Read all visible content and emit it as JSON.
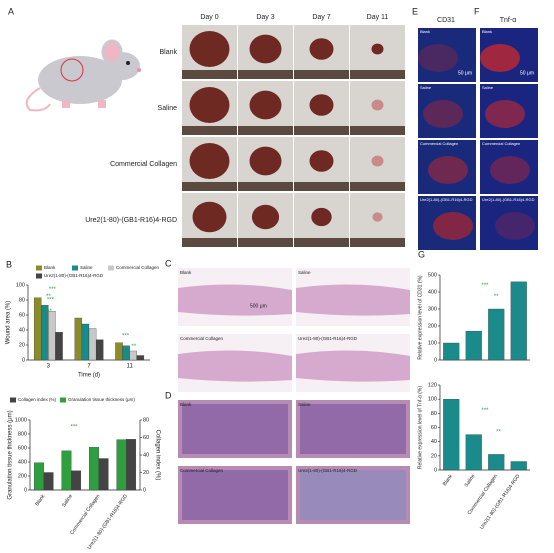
{
  "panel_a": {
    "label": "A",
    "days": [
      "Day 0",
      "Day 3",
      "Day 7",
      "Day 11"
    ],
    "rows": [
      "Blank",
      "Saline",
      "Commercial Collagen",
      "Ure2(1-80)-(GB1-R16)4-RGD"
    ]
  },
  "panel_e": {
    "label": "E",
    "title": "CD31",
    "scale": "50 μm",
    "rows": [
      "Blank",
      "Saline",
      "Commercial Collagen",
      "Ure2(1-80)-(GB1-R16)4-RGD"
    ]
  },
  "panel_f": {
    "label": "F",
    "title": "Tnf-α",
    "scale": "50 μm",
    "rows": [
      "Blank",
      "Saline",
      "Commercial Collagen",
      "Ure2(1-80)-(GB1-R16)4-RGD"
    ]
  },
  "panel_c": {
    "label": "C",
    "scale": "500 μm",
    "images": [
      "Blank",
      "Saline",
      "Commercial Collagen",
      "Ure2(1-80)-(GB1-R16)4-RGD"
    ]
  },
  "panel_d": {
    "label": "D",
    "images": [
      "Blank",
      "Saline",
      "Commercial Collagen",
      "Ure2(1-80)-(GB1-R16)4-RGD"
    ]
  },
  "chart_data": [
    {
      "type": "bar",
      "panel_label": "B",
      "y_label": "Wound area (%)",
      "x_label": "Time (d)",
      "categories": [
        "3",
        "7",
        "11"
      ],
      "ylim": [
        0,
        100
      ],
      "yticks": [
        0,
        20,
        40,
        60,
        80,
        100
      ],
      "series": [
        {
          "name": "Blank",
          "color": "#8b8b2a",
          "values": [
            83,
            56,
            23
          ]
        },
        {
          "name": "Saline",
          "color": "#1a8a8a",
          "values": [
            73,
            48,
            19
          ]
        },
        {
          "name": "Commercial Collagen",
          "color": "#c8c8c8",
          "values": [
            65,
            42,
            12
          ]
        },
        {
          "name": "Ure2(1-80)-(GB1-R16)4-RGD",
          "color": "#444444",
          "values": [
            37,
            27,
            6
          ]
        }
      ],
      "annotations": [
        "**",
        "***",
        "***",
        "***",
        "***",
        "**"
      ]
    },
    {
      "type": "bar",
      "y_label": "Granulation tissue thickness (μm)",
      "y2_label": "Collagen index (%)",
      "categories": [
        "Blank",
        "Saline",
        "Commercial Collagen",
        "Ure2(1-80)-(GB1-R16)4-RGD"
      ],
      "ylim": [
        0,
        1000
      ],
      "yticks": [
        0,
        200,
        400,
        600,
        800,
        1000
      ],
      "y2lim": [
        0,
        80
      ],
      "y2ticks": [
        0,
        20,
        40,
        60,
        80
      ],
      "series": [
        {
          "name": "Collagen index (%)",
          "color": "#444444",
          "axis": "y2",
          "values": [
            20,
            22,
            36,
            58
          ]
        },
        {
          "name": "Granulation tissue thickness (μm)",
          "color": "#2e9e3e",
          "values": [
            390,
            560,
            610,
            720
          ]
        }
      ],
      "annotations": [
        "***"
      ]
    },
    {
      "type": "bar",
      "panel_label": "G",
      "y_label": "Relative expression level of CD31 (%)",
      "values": [
        100,
        170,
        300,
        460
      ],
      "color": "#1a8a8a",
      "ylim": [
        0,
        500
      ],
      "yticks": [
        0,
        100,
        200,
        300,
        400,
        500
      ],
      "annotations": [
        "***",
        "**"
      ]
    },
    {
      "type": "bar",
      "y_label": "Relative expression level of Tnf-α (%)",
      "categories": [
        "Blank",
        "Saline",
        "Commercial Collagen",
        "Ure2(1-80)-(GB1-R16)4-RGD"
      ],
      "values": [
        100,
        50,
        22,
        12
      ],
      "color": "#1a8a8a",
      "ylim": [
        0,
        120
      ],
      "yticks": [
        0,
        20,
        40,
        60,
        80,
        100,
        120
      ],
      "annotations": [
        "***",
        "**"
      ]
    }
  ]
}
